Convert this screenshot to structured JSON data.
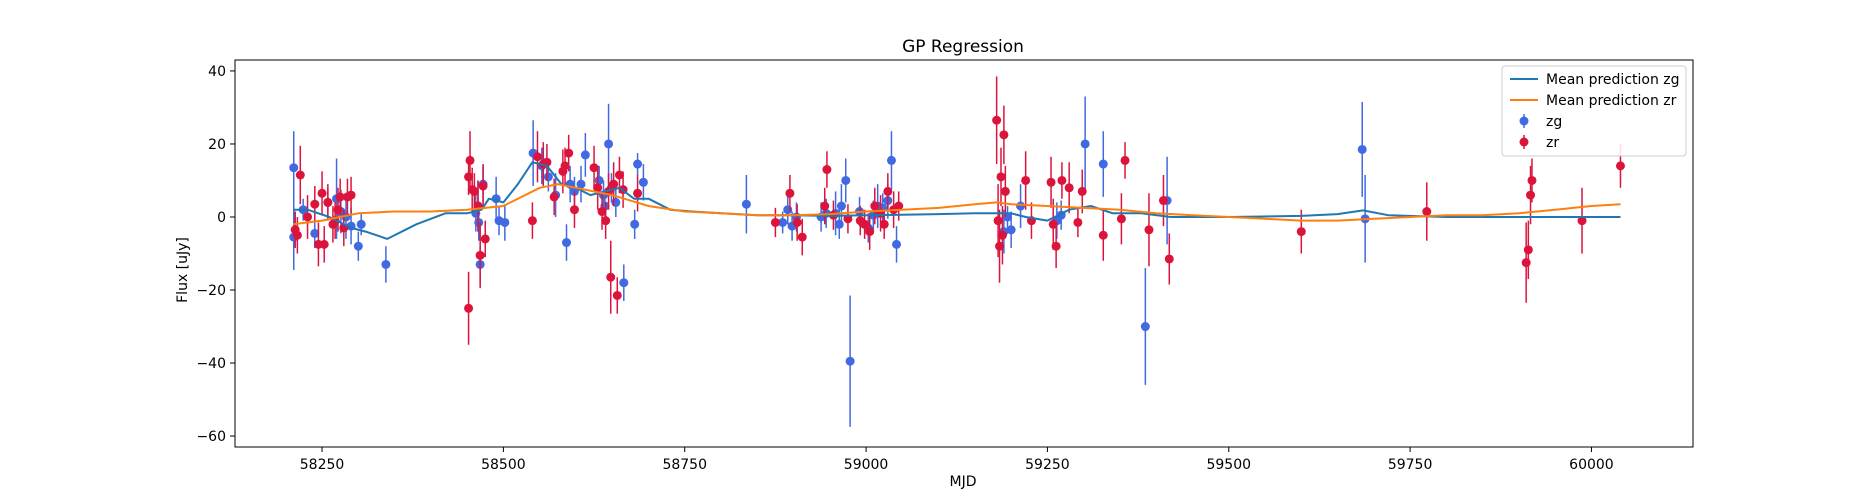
{
  "chart_data": {
    "type": "scatter",
    "title": "GP Regression",
    "xlabel": "MJD",
    "ylabel": "Flux [uJy]",
    "xlim": [
      58130,
      60140
    ],
    "ylim": [
      -63,
      43
    ],
    "xticks": [
      58250,
      58500,
      58750,
      59000,
      59250,
      59500,
      59750,
      60000
    ],
    "yticks": [
      -60,
      -40,
      -20,
      0,
      20,
      40
    ],
    "grid": false,
    "legend_position": "top-right",
    "colors": {
      "zg": "#4169e1",
      "zr": "#dc143c",
      "mean_zg": "#1f77b4",
      "mean_zr": "#ff7f0e"
    },
    "legend": [
      {
        "label": "Mean prediction zg",
        "kind": "line",
        "color": "#1f77b4"
      },
      {
        "label": "Mean prediction zr",
        "kind": "line",
        "color": "#ff7f0e"
      },
      {
        "label": "zg",
        "kind": "errorbar",
        "color": "#4169e1"
      },
      {
        "label": "zr",
        "kind": "errorbar",
        "color": "#dc143c"
      }
    ],
    "lines": [
      {
        "name": "Mean prediction zg",
        "color": "#1f77b4",
        "x": [
          58210,
          58230,
          58260,
          58290,
          58310,
          58340,
          58380,
          58420,
          58450,
          58470,
          58480,
          58500,
          58520,
          58540,
          58560,
          58580,
          58600,
          58620,
          58640,
          58660,
          58680,
          58700,
          58730,
          58760,
          58800,
          58850,
          58900,
          58950,
          59000,
          59050,
          59100,
          59150,
          59180,
          59200,
          59220,
          59250,
          59280,
          59310,
          59340,
          59380,
          59420,
          59500,
          59600,
          59650,
          59685,
          59720,
          59800,
          59900,
          60000,
          60040
        ],
        "y": [
          2,
          2,
          0,
          -3,
          -4,
          -6,
          -2,
          1,
          1,
          2,
          5,
          4,
          9,
          15,
          14,
          9,
          8,
          6,
          7,
          8,
          5,
          5,
          2,
          1.5,
          1,
          0.5,
          0.5,
          0.3,
          0.5,
          0.6,
          0.8,
          1,
          1,
          1,
          0,
          -1,
          2,
          3,
          1,
          1,
          0,
          0,
          0.3,
          0.8,
          1.8,
          0.5,
          0,
          0,
          0,
          0
        ]
      },
      {
        "name": "Mean prediction zr",
        "color": "#ff7f0e",
        "x": [
          58210,
          58250,
          58300,
          58350,
          58400,
          58450,
          58500,
          58550,
          58575,
          58600,
          58650,
          58700,
          58750,
          58800,
          58850,
          58900,
          58950,
          59000,
          59050,
          59100,
          59150,
          59180,
          59200,
          59250,
          59300,
          59350,
          59400,
          59450,
          59500,
          59550,
          59600,
          59650,
          59700,
          59750,
          59800,
          59850,
          59900,
          59950,
          60000,
          60040
        ],
        "y": [
          -2,
          -1,
          1,
          1.5,
          1.5,
          2,
          3,
          8,
          9,
          8,
          6,
          3,
          1.5,
          1,
          0.5,
          0.5,
          0.8,
          1.5,
          2,
          2.5,
          3.5,
          4,
          3.5,
          3,
          2.5,
          2,
          1,
          0.5,
          0,
          -0.5,
          -1,
          -1,
          -0.5,
          0,
          0.5,
          0.5,
          1,
          2,
          3,
          3.5
        ]
      }
    ],
    "series": [
      {
        "name": "zg",
        "color": "#4169e1",
        "points": [
          [
            58211,
            13.5,
            10
          ],
          [
            58211,
            -5.5,
            9
          ],
          [
            58224,
            2,
            3
          ],
          [
            58240,
            -4.5,
            4
          ],
          [
            58258,
            4,
            4
          ],
          [
            58270,
            5,
            11
          ],
          [
            58276,
            1.5,
            6
          ],
          [
            58283,
            0,
            6
          ],
          [
            58290,
            -2.5,
            5
          ],
          [
            58300,
            -8,
            4
          ],
          [
            58304,
            -2,
            3
          ],
          [
            58338,
            -13,
            5
          ],
          [
            58462,
            1,
            5
          ],
          [
            58465,
            3,
            7
          ],
          [
            58466,
            -1.5,
            5
          ],
          [
            58468,
            -13,
            5
          ],
          [
            58472,
            9,
            5
          ],
          [
            58490,
            5,
            6
          ],
          [
            58494,
            -1,
            4
          ],
          [
            58502,
            -1.5,
            5
          ],
          [
            58541,
            17.5,
            9
          ],
          [
            58553,
            14,
            5
          ],
          [
            58562,
            11,
            4
          ],
          [
            58572,
            6,
            6
          ],
          [
            58587,
            -7,
            5
          ],
          [
            58592,
            9,
            5
          ],
          [
            58598,
            7,
            4
          ],
          [
            58607,
            9,
            5
          ],
          [
            58613,
            17,
            6
          ],
          [
            58632,
            10,
            4
          ],
          [
            58638,
            6,
            4
          ],
          [
            58640,
            3,
            4
          ],
          [
            58645,
            20,
            11
          ],
          [
            58649,
            8,
            4
          ],
          [
            58655,
            4,
            4
          ],
          [
            58666,
            -18,
            5
          ],
          [
            58681,
            -2,
            4
          ],
          [
            58685,
            14.5,
            3
          ],
          [
            58693,
            9.5,
            5
          ],
          [
            58835,
            3.5,
            8
          ],
          [
            58885,
            -1.5,
            3
          ],
          [
            58892,
            2,
            4
          ],
          [
            58898,
            -2.5,
            4
          ],
          [
            58904,
            0,
            4
          ],
          [
            58938,
            0,
            4
          ],
          [
            58945,
            1,
            4
          ],
          [
            58958,
            1,
            6
          ],
          [
            58963,
            -2,
            4
          ],
          [
            58966,
            3,
            6
          ],
          [
            58972,
            10,
            6
          ],
          [
            58978,
            -39.5,
            18
          ],
          [
            58991,
            1.5,
            4
          ],
          [
            59003,
            -3,
            4
          ],
          [
            59010,
            0.5,
            4
          ],
          [
            59016,
            3,
            6
          ],
          [
            59023,
            2.5,
            4
          ],
          [
            59030,
            4.5,
            5
          ],
          [
            59035,
            15.5,
            8
          ],
          [
            59042,
            -7.5,
            5
          ],
          [
            59190,
            -4,
            6
          ],
          [
            59195,
            0,
            3
          ],
          [
            59200,
            -3.5,
            5
          ],
          [
            59213,
            3,
            6
          ],
          [
            59263,
            -1,
            5
          ],
          [
            59269,
            0.5,
            4
          ],
          [
            59302,
            20,
            13
          ],
          [
            59327,
            14.5,
            9
          ],
          [
            59385,
            -30,
            16
          ],
          [
            59415,
            4.5,
            12
          ],
          [
            59684,
            18.5,
            13
          ],
          [
            59688,
            -0.5,
            12
          ]
        ]
      },
      {
        "name": "zr",
        "color": "#dc143c",
        "points": [
          [
            58213,
            -3.5,
            5
          ],
          [
            58216,
            -5,
            5
          ],
          [
            58220,
            11.5,
            8
          ],
          [
            58230,
            0,
            6
          ],
          [
            58240,
            3.5,
            5
          ],
          [
            58245,
            -7.5,
            6
          ],
          [
            58250,
            6.5,
            6
          ],
          [
            58253,
            -7.5,
            5
          ],
          [
            58258,
            4,
            5
          ],
          [
            58265,
            -2,
            5
          ],
          [
            58268,
            -1,
            5
          ],
          [
            58272,
            2,
            6
          ],
          [
            58275,
            5.5,
            5
          ],
          [
            58280,
            -3,
            5
          ],
          [
            58285,
            5.5,
            5
          ],
          [
            58290,
            6,
            5
          ],
          [
            58452,
            -25,
            10
          ],
          [
            58452,
            11,
            5
          ],
          [
            58454,
            15.5,
            8
          ],
          [
            58457,
            7.5,
            6
          ],
          [
            58460,
            7,
            5
          ],
          [
            58465,
            3,
            7
          ],
          [
            58468,
            -10.5,
            9
          ],
          [
            58472,
            8.5,
            6
          ],
          [
            58475,
            -6,
            5
          ],
          [
            58540,
            -1,
            5
          ],
          [
            58547,
            16.5,
            7
          ],
          [
            58555,
            14.5,
            6
          ],
          [
            58560,
            15,
            5
          ],
          [
            58570,
            5.5,
            5
          ],
          [
            58582,
            12.5,
            6
          ],
          [
            58585,
            14,
            5
          ],
          [
            58590,
            17.5,
            5
          ],
          [
            58598,
            2,
            5
          ],
          [
            58625,
            13.5,
            6
          ],
          [
            58630,
            8,
            6
          ],
          [
            58636,
            1.5,
            5
          ],
          [
            58641,
            -1,
            5
          ],
          [
            58645,
            7,
            5
          ],
          [
            58648,
            -16.5,
            10
          ],
          [
            58652,
            9,
            6
          ],
          [
            58657,
            -21.5,
            5
          ],
          [
            58660,
            11.5,
            5
          ],
          [
            58665,
            7.5,
            5
          ],
          [
            58685,
            6.5,
            5
          ],
          [
            58875,
            -1.5,
            4
          ],
          [
            58895,
            6.5,
            5
          ],
          [
            58905,
            -1.5,
            5
          ],
          [
            58912,
            -5.5,
            5
          ],
          [
            58943,
            3,
            5
          ],
          [
            58946,
            13,
            5
          ],
          [
            58955,
            0.5,
            4
          ],
          [
            58975,
            -0.5,
            4
          ],
          [
            58992,
            -1,
            4
          ],
          [
            58998,
            -2,
            4
          ],
          [
            59005,
            -4,
            5
          ],
          [
            59012,
            3,
            5
          ],
          [
            59020,
            1,
            5
          ],
          [
            59025,
            -2,
            4
          ],
          [
            59030,
            7,
            5
          ],
          [
            59038,
            2,
            5
          ],
          [
            59045,
            3,
            4
          ],
          [
            59180,
            26.5,
            12
          ],
          [
            59182,
            -1,
            10
          ],
          [
            59184,
            -8,
            10
          ],
          [
            59186,
            11,
            8
          ],
          [
            59188,
            -5,
            8
          ],
          [
            59190,
            22.5,
            8
          ],
          [
            59192,
            7,
            7
          ],
          [
            59220,
            10,
            8
          ],
          [
            59228,
            -1,
            5
          ],
          [
            59255,
            9.5,
            7
          ],
          [
            59258,
            -2,
            7
          ],
          [
            59262,
            -8,
            6
          ],
          [
            59270,
            10,
            5
          ],
          [
            59280,
            8,
            7
          ],
          [
            59292,
            -1.5,
            4
          ],
          [
            59298,
            7,
            6
          ],
          [
            59327,
            -5,
            7
          ],
          [
            59352,
            -0.5,
            7
          ],
          [
            59357,
            15.5,
            5
          ],
          [
            59390,
            -3.5,
            10
          ],
          [
            59410,
            4.5,
            7
          ],
          [
            59418,
            -11.5,
            7
          ],
          [
            59600,
            -4,
            6
          ],
          [
            59773,
            1.5,
            8
          ],
          [
            59910,
            -12.5,
            11
          ],
          [
            59913,
            -9,
            8
          ],
          [
            59916,
            6,
            8
          ],
          [
            59918,
            10,
            6
          ],
          [
            59987,
            -1,
            9
          ],
          [
            60040,
            14,
            6
          ]
        ]
      }
    ]
  }
}
